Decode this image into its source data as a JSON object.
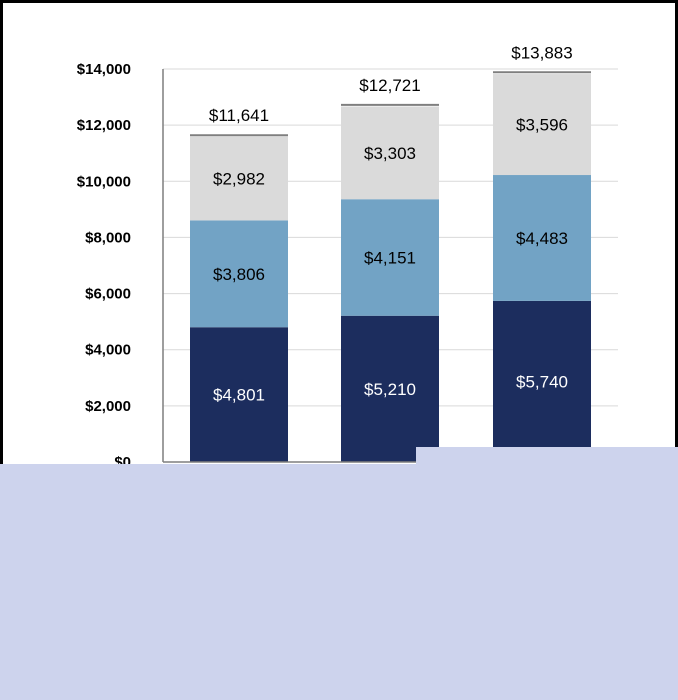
{
  "chart_data": {
    "type": "bar",
    "stacked": true,
    "title": "",
    "xlabel": "",
    "ylabel": "",
    "ylim": [
      0,
      14000
    ],
    "yticks": [
      0,
      2000,
      4000,
      6000,
      8000,
      10000,
      12000,
      14000
    ],
    "ytick_labels": [
      "$0",
      "$2,000",
      "$4,000",
      "$6,000",
      "$8,000",
      "$10,000",
      "$12,000",
      "$14,000"
    ],
    "grid": true,
    "categories": [
      "",
      "",
      ""
    ],
    "series": [
      {
        "values": [
          4801,
          5210,
          5740
        ],
        "labels": [
          "$4,801",
          "$5,210",
          "$5,740"
        ],
        "color": "#1c2d5e",
        "label_color": "#ffffff"
      },
      {
        "values": [
          3806,
          4151,
          4483
        ],
        "labels": [
          "$3,806",
          "$4,151",
          "$4,483"
        ],
        "color": "#72a3c5",
        "label_color": "#000000"
      },
      {
        "values": [
          2982,
          3303,
          3596
        ],
        "labels": [
          "$2,982",
          "$3,303",
          "$3,596"
        ],
        "color": "#dadada",
        "label_color": "#000000"
      }
    ],
    "totals": [
      11641,
      12721,
      13883
    ],
    "total_labels": [
      "$11,641",
      "$12,721",
      "$13,883"
    ]
  },
  "colors": {
    "overlay": "#cdd3ed",
    "gridline": "#d9d9d9",
    "axis": "#7f7f7f"
  }
}
